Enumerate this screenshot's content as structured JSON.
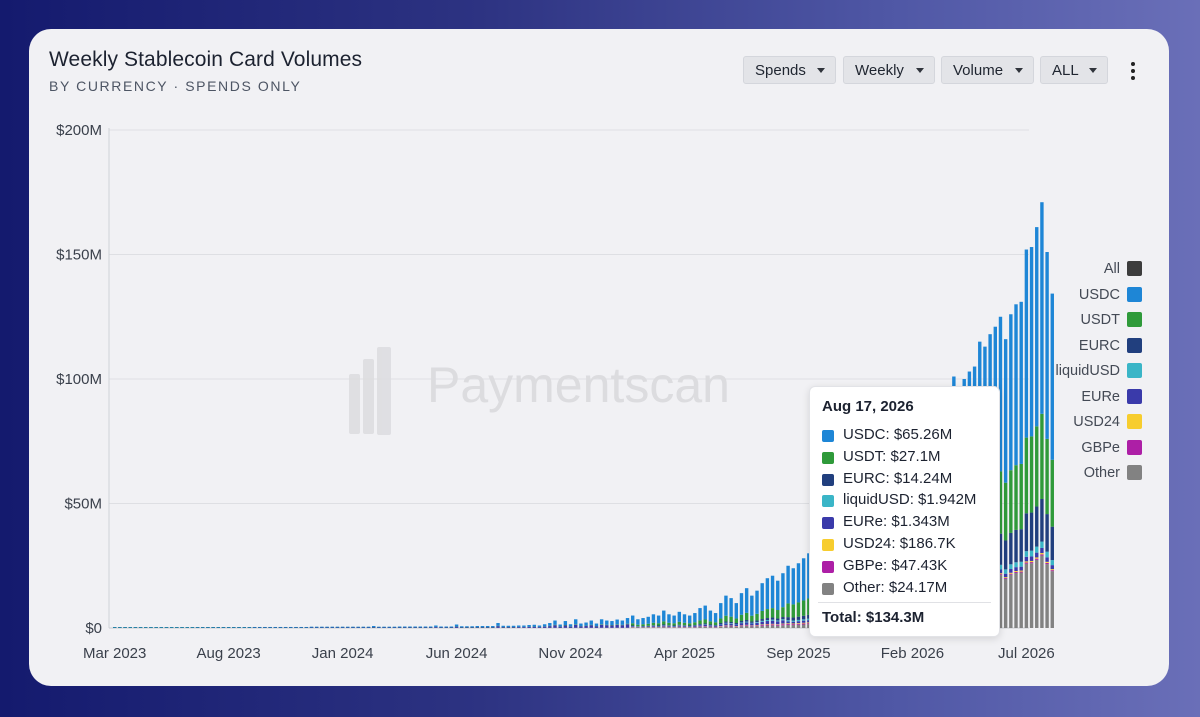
{
  "header": {
    "title": "Weekly Stablecoin Card Volumes",
    "subtitle": "BY CURRENCY · SPENDS ONLY"
  },
  "controls": {
    "metric": "Spends",
    "interval": "Weekly",
    "measure": "Volume",
    "range": "ALL"
  },
  "watermark": "Paymentscan",
  "colors": {
    "All": "#3d3d3d",
    "USDC": "#1e86d6",
    "USDT": "#2f9a3a",
    "EURC": "#213f7e",
    "liquidUSD": "#3ab5c7",
    "EURe": "#3a3aaa",
    "USD24": "#f7cd2e",
    "GBPe": "#ad1fa6",
    "Other": "#828282"
  },
  "legend": [
    "All",
    "USDC",
    "USDT",
    "EURC",
    "liquidUSD",
    "EURe",
    "USD24",
    "GBPe",
    "Other"
  ],
  "tooltip": {
    "date": "Aug 17, 2026",
    "rows": [
      {
        "series": "USDC",
        "text": "USDC: $65.26M"
      },
      {
        "series": "USDT",
        "text": "USDT: $27.1M"
      },
      {
        "series": "EURC",
        "text": "EURC: $14.24M"
      },
      {
        "series": "liquidUSD",
        "text": "liquidUSD: $1.942M"
      },
      {
        "series": "EURe",
        "text": "EURe: $1.343M"
      },
      {
        "series": "USD24",
        "text": "USD24: $186.7K"
      },
      {
        "series": "GBPe",
        "text": "GBPe: $47.43K"
      },
      {
        "series": "Other",
        "text": "Other: $24.17M"
      }
    ],
    "total": "Total: $134.3M"
  },
  "chart_data": {
    "type": "bar",
    "stacked": true,
    "ylim": [
      0,
      200
    ],
    "y_unit": "$M",
    "y_ticks": [
      0,
      50,
      100,
      150,
      200
    ],
    "y_tick_labels": [
      "$0",
      "$50M",
      "$100M",
      "$150M",
      "$200M"
    ],
    "x_tick_labels": [
      "Mar 2023",
      "Aug 2023",
      "Jan 2024",
      "Jun 2024",
      "Nov 2024",
      "Apr 2025",
      "Sep 2025",
      "Feb 2026",
      "Jul 2026"
    ],
    "x_tick_weeks": [
      0,
      22,
      44,
      66,
      88,
      110,
      132,
      154,
      176
    ],
    "grid": true,
    "legend_position": "right",
    "series_names": [
      "Other",
      "GBPe",
      "USD24",
      "EURe",
      "liquidUSD",
      "EURC",
      "USDT",
      "USDC"
    ],
    "totals": [
      0.2,
      0.2,
      0.2,
      0.2,
      0.2,
      0.2,
      0.2,
      0.2,
      0.2,
      0.2,
      0.2,
      0.2,
      0.2,
      0.2,
      0.2,
      0.2,
      0.3,
      0.3,
      0.3,
      0.3,
      0.3,
      0.3,
      0.3,
      0.3,
      0.3,
      0.3,
      0.3,
      0.4,
      0.4,
      0.4,
      0.4,
      0.4,
      0.4,
      0.4,
      0.4,
      0.4,
      0.4,
      0.4,
      0.5,
      0.5,
      0.5,
      0.5,
      0.5,
      0.5,
      0.5,
      0.5,
      0.5,
      0.5,
      0.5,
      0.5,
      0.8,
      0.5,
      0.5,
      0.5,
      0.5,
      0.6,
      0.6,
      0.6,
      0.6,
      0.6,
      0.6,
      0.6,
      1.0,
      0.6,
      0.6,
      0.6,
      1.4,
      0.7,
      0.7,
      0.7,
      0.8,
      0.8,
      0.8,
      0.8,
      2.0,
      0.9,
      0.9,
      0.9,
      1.0,
      1.0,
      1.2,
      1.3,
      1.0,
      1.5,
      2.0,
      3.0,
      1.4,
      2.8,
      1.5,
      3.5,
      1.8,
      2.2,
      3.0,
      1.8,
      3.5,
      3.0,
      2.8,
      3.4,
      3.0,
      4.0,
      5.0,
      3.5,
      4.0,
      4.5,
      5.5,
      5.0,
      7.0,
      5.5,
      5.0,
      6.5,
      5.5,
      5.0,
      6.0,
      8.0,
      9.0,
      7.0,
      6.0,
      10.0,
      13.0,
      12.0,
      10.0,
      14.0,
      16.0,
      13.0,
      15.0,
      18.0,
      20.0,
      21.0,
      19.0,
      22.0,
      25.0,
      24.0,
      26.0,
      28.0,
      30.0,
      29.0,
      33.0,
      32.0,
      38.0,
      36.0,
      42.0,
      38.0,
      44.0,
      46.0,
      48.0,
      45.0,
      52.0,
      55.0,
      60.0,
      58.0,
      56.0,
      62.0,
      66.0,
      72.0,
      70.0,
      75.0,
      80.0,
      78.0,
      85.0,
      88.0,
      92.0,
      94.0,
      101.0,
      96.0,
      100.0,
      103.0,
      105.0,
      115.0,
      113.0,
      118.0,
      121.0,
      125.0,
      116.0,
      126.0,
      130.0,
      131.0,
      152.0,
      153.0,
      161.0,
      171.0,
      151.0,
      134.3
    ]
  }
}
